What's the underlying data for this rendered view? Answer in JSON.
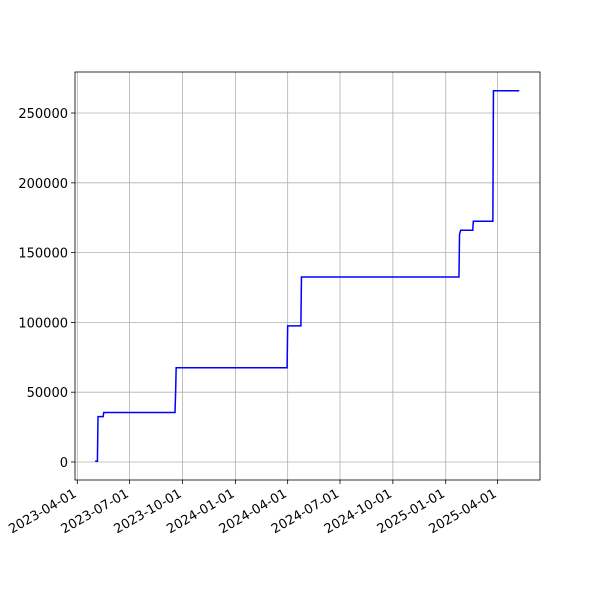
{
  "chart_data": {
    "type": "line",
    "x": [
      "2023-05-02",
      "2023-05-06",
      "2023-05-07",
      "2023-05-16",
      "2023-05-17",
      "2023-09-18",
      "2023-09-19",
      "2023-09-20",
      "2024-03-31",
      "2024-04-01",
      "2024-04-24",
      "2024-04-25",
      "2025-01-24",
      "2025-01-25",
      "2025-01-27",
      "2025-02-17",
      "2025-02-18",
      "2025-03-24",
      "2025-03-25",
      "2025-05-09"
    ],
    "series": [
      {
        "color": "#0000ff",
        "values": [
          500,
          500,
          32500,
          32500,
          35500,
          35500,
          49000,
          67500,
          67500,
          97500,
          97500,
          132500,
          132500,
          163000,
          166000,
          166000,
          172500,
          172500,
          266000,
          266000
        ]
      }
    ],
    "xlim": [
      "2023-03-28",
      "2025-06-14"
    ],
    "xticks": [
      "2023-04-01",
      "2023-07-01",
      "2023-10-01",
      "2024-01-01",
      "2024-04-01",
      "2024-07-01",
      "2024-10-01",
      "2025-01-01",
      "2025-04-01"
    ],
    "ylim": [
      -12900,
      279400
    ],
    "yticks": [
      0,
      50000,
      100000,
      150000,
      200000,
      250000
    ],
    "grid": true
  }
}
